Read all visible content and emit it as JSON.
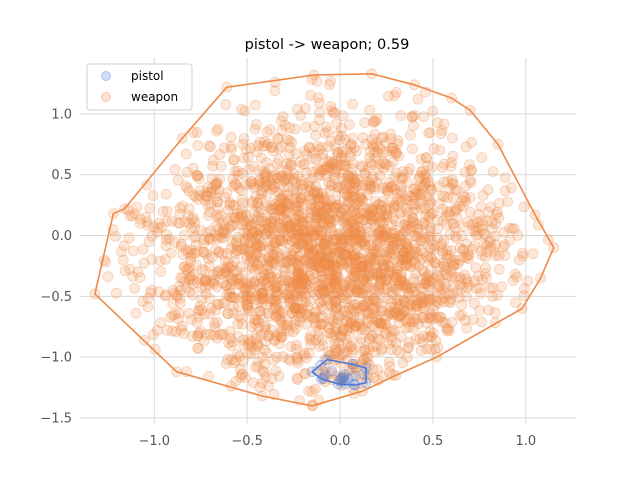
{
  "chart_data": {
    "type": "scatter",
    "title": "pistol -> weapon; 0.59",
    "xlabel": "",
    "ylabel": "",
    "xlim": [
      -1.4,
      1.27
    ],
    "ylim": [
      -1.55,
      1.46
    ],
    "xticks": [
      -1.0,
      -0.5,
      0.0,
      0.5,
      1.0
    ],
    "xtick_labels": [
      "−1.0",
      "−0.5",
      "0.0",
      "0.5",
      "1.0"
    ],
    "yticks": [
      -1.5,
      -1.0,
      -0.5,
      0.0,
      0.5,
      1.0
    ],
    "ytick_labels": [
      "−1.5",
      "−1.0",
      "−0.5",
      "0.0",
      "0.5",
      "1.0"
    ],
    "grid": true,
    "legend": {
      "placement": "top-left",
      "entries": [
        {
          "label": "pistol",
          "color": "#4a78d8"
        },
        {
          "label": "weapon",
          "color": "#ef8a47"
        }
      ]
    },
    "series": [
      {
        "name": "pistol",
        "color": "#4a78d8",
        "point_count": 14,
        "hull": [
          [
            -0.07,
            -1.02
          ],
          [
            0.07,
            -1.06
          ],
          [
            0.14,
            -1.09
          ],
          [
            0.14,
            -1.21
          ],
          [
            0.08,
            -1.23
          ],
          [
            -0.01,
            -1.22
          ],
          [
            -0.1,
            -1.18
          ],
          [
            -0.15,
            -1.12
          ]
        ],
        "center": [
          0.0,
          -1.14
        ],
        "spread": [
          0.08,
          0.05
        ]
      },
      {
        "name": "weapon",
        "color": "#ef8a47",
        "point_count": 2600,
        "hull": [
          [
            -0.61,
            1.22
          ],
          [
            -0.14,
            1.32
          ],
          [
            0.17,
            1.33
          ],
          [
            0.4,
            1.24
          ],
          [
            0.6,
            1.13
          ],
          [
            0.7,
            1.03
          ],
          [
            0.85,
            0.75
          ],
          [
            1.05,
            0.17
          ],
          [
            1.15,
            -0.1
          ],
          [
            1.08,
            -0.35
          ],
          [
            0.98,
            -0.6
          ],
          [
            0.52,
            -1.0
          ],
          [
            0.3,
            -1.15
          ],
          [
            0.12,
            -1.28
          ],
          [
            -0.15,
            -1.4
          ],
          [
            -0.42,
            -1.32
          ],
          [
            -0.88,
            -1.12
          ],
          [
            -1.32,
            -0.48
          ],
          [
            -1.22,
            0.18
          ],
          [
            -1.16,
            0.22
          ],
          [
            -0.85,
            0.8
          ]
        ],
        "center": [
          -0.05,
          -0.15
        ],
        "spread": [
          0.5,
          0.55
        ]
      }
    ]
  }
}
